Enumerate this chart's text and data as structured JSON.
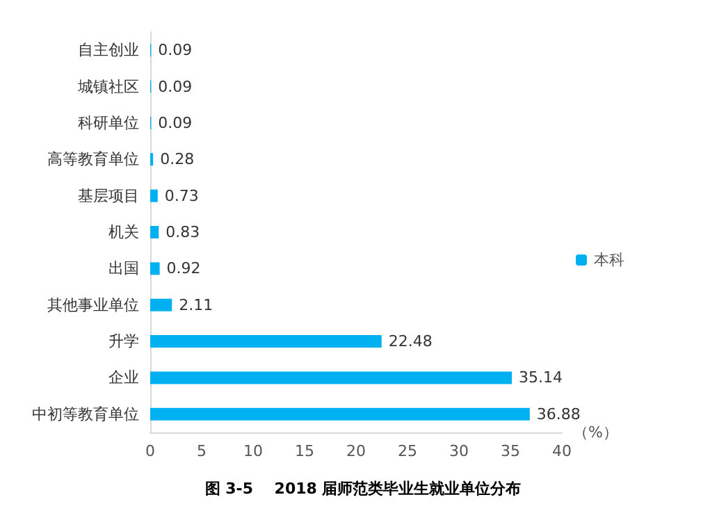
{
  "chart_data": {
    "type": "bar",
    "orientation": "horizontal",
    "title": "图 3-5    2018 届师范类毕业生就业单位分布",
    "xlabel": "（%）",
    "categories": [
      "自主创业",
      "城镇社区",
      "科研单位",
      "高等教育单位",
      "基层项目",
      "机关",
      "出国",
      "其他事业单位",
      "升学",
      "企业",
      "中初等教育单位"
    ],
    "series": [
      {
        "name": "本科",
        "color": "#00b0f0",
        "values": [
          0.09,
          0.09,
          0.09,
          0.28,
          0.73,
          0.83,
          0.92,
          2.11,
          22.48,
          35.14,
          36.88
        ]
      }
    ],
    "xlim": [
      0,
      40
    ],
    "xticks": [
      0,
      5,
      10,
      15,
      20,
      25,
      30,
      35,
      40
    ],
    "grid": false,
    "legend": "right",
    "data_labels": true
  }
}
